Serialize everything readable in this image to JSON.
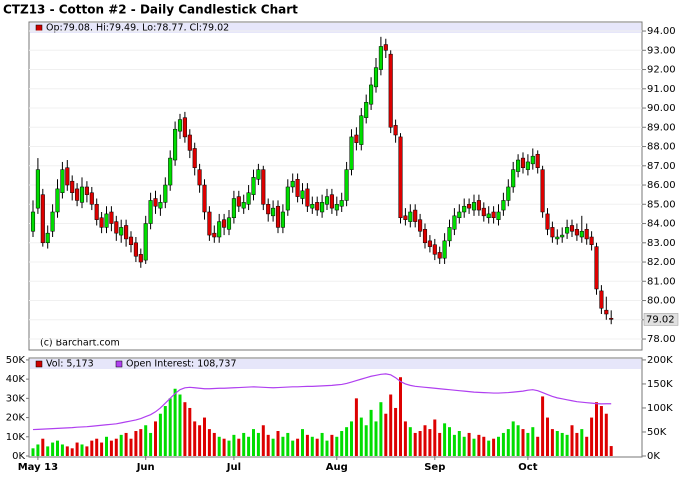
{
  "chart_data": [
    {
      "type": "candlestick",
      "title": "CTZ13 - Cotton #2 - Daily Candlestick Chart",
      "legend": "Op:79.08, Hi:79.49, Lo:78.77, Cl:79.02",
      "watermark": "(c) Barchart.com",
      "up_color": "#00dd00",
      "down_color": "#dd0000",
      "legend_color": "#cc0000",
      "grid": true,
      "ylim": [
        77.43,
        94.47
      ],
      "yticks": [
        {
          "value": 78,
          "label": "78.00"
        },
        {
          "value": 79,
          "label": "79.00"
        },
        {
          "value": 80,
          "label": "80.00"
        },
        {
          "value": 81,
          "label": "81.00"
        },
        {
          "value": 82,
          "label": "82.00"
        },
        {
          "value": 83,
          "label": "83.00"
        },
        {
          "value": 84,
          "label": "84.00"
        },
        {
          "value": 85,
          "label": "85.00"
        },
        {
          "value": 86,
          "label": "86.00"
        },
        {
          "value": 87,
          "label": "87.00"
        },
        {
          "value": 88,
          "label": "88.00"
        },
        {
          "value": 89,
          "label": "89.00"
        },
        {
          "value": 90,
          "label": "90.00"
        },
        {
          "value": 91,
          "label": "91.00"
        },
        {
          "value": 92,
          "label": "92.00"
        },
        {
          "value": 93,
          "label": "93.00"
        },
        {
          "value": 94,
          "label": "94.00"
        }
      ],
      "open": [
        83.6,
        84.8,
        85.5,
        83.0,
        83.6,
        84.6,
        85.6,
        86.9,
        86.2,
        85.8,
        85.1,
        85.9,
        85.6,
        85.0,
        84.3,
        83.8,
        84.6,
        84.1,
        83.4,
        83.9,
        83.3,
        83.0,
        82.4,
        82.1,
        84.0,
        85.3,
        84.8,
        85.1,
        86.0,
        87.3,
        88.8,
        89.5,
        88.6,
        87.9,
        86.8,
        86.0,
        84.6,
        83.5,
        83.3,
        84.2,
        83.7,
        84.3,
        85.4,
        84.8,
        85.0,
        85.5,
        86.3,
        86.8,
        85.0,
        84.4,
        84.9,
        83.8,
        84.7,
        85.9,
        86.3,
        85.3,
        85.8,
        84.8,
        85.1,
        84.6,
        85.0,
        85.5,
        84.7,
        84.9,
        85.2,
        86.8,
        88.6,
        88.1,
        89.5,
        90.2,
        91.1,
        92.0,
        93.3,
        92.8,
        89.1,
        88.5,
        84.4,
        84.1,
        84.7,
        84.2,
        83.7,
        83.1,
        82.9,
        82.5,
        82.2,
        83.1,
        83.7,
        84.3,
        84.6,
        85.0,
        84.7,
        85.2,
        84.8,
        84.3,
        84.6,
        84.2,
        84.7,
        85.2,
        85.9,
        86.7,
        87.4,
        86.8,
        87.1,
        87.6,
        86.8,
        84.5,
        83.8,
        83.2,
        83.3,
        83.5,
        83.9,
        83.7,
        83.3,
        83.7,
        83.3,
        82.8,
        80.5,
        79.5,
        79.08
      ],
      "high": [
        85.2,
        87.4,
        85.8,
        83.9,
        85.0,
        86.3,
        87.2,
        87.3,
        86.5,
        86.1,
        86.4,
        86.2,
        85.9,
        85.3,
        84.6,
        84.9,
        84.9,
        84.4,
        84.2,
        84.2,
        83.6,
        83.3,
        82.7,
        84.4,
        85.6,
        85.7,
        85.5,
        86.4,
        87.8,
        89.3,
        89.7,
        89.8,
        88.9,
        88.2,
        87.1,
        86.3,
        84.9,
        83.9,
        84.5,
        84.5,
        84.7,
        85.7,
        85.7,
        85.5,
        86.0,
        86.8,
        87.1,
        87.0,
        85.3,
        85.2,
        85.2,
        85.0,
        86.3,
        86.6,
        86.6,
        86.1,
        86.1,
        85.4,
        85.4,
        85.5,
        85.8,
        85.8,
        85.4,
        85.6,
        87.2,
        88.9,
        89.0,
        90.0,
        90.7,
        91.6,
        92.6,
        93.7,
        93.6,
        93.0,
        89.4,
        88.7,
        84.8,
        85.0,
        85.0,
        84.5,
        84.0,
        83.4,
        83.2,
        82.8,
        83.5,
        84.2,
        84.8,
        85.0,
        85.3,
        85.3,
        85.5,
        85.5,
        85.1,
        84.9,
        84.9,
        85.0,
        85.6,
        86.3,
        87.2,
        87.6,
        87.7,
        87.6,
        87.9,
        87.8,
        87.0,
        84.8,
        84.1,
        83.7,
        83.8,
        84.2,
        84.2,
        84.0,
        84.4,
        84.0,
        83.6,
        83.0,
        80.8,
        80.2,
        79.49
      ],
      "low": [
        83.3,
        84.5,
        82.8,
        82.7,
        83.3,
        84.3,
        85.3,
        85.7,
        85.2,
        84.9,
        84.8,
        85.1,
        84.7,
        83.9,
        83.5,
        83.5,
        83.6,
        83.1,
        83.0,
        82.8,
        82.5,
        82.0,
        81.7,
        81.9,
        83.7,
        84.5,
        84.4,
        84.8,
        85.7,
        87.0,
        88.4,
        88.2,
        87.4,
        86.5,
        85.6,
        84.2,
        83.1,
        83.0,
        83.0,
        83.4,
        83.4,
        84.0,
        84.6,
        84.5,
        84.7,
        85.2,
        86.0,
        84.7,
        84.1,
        84.1,
        83.5,
        83.5,
        84.4,
        85.6,
        85.1,
        85.0,
        84.6,
        84.5,
        84.4,
        84.3,
        84.7,
        84.5,
        84.4,
        84.6,
        84.9,
        86.5,
        87.8,
        87.8,
        89.2,
        89.9,
        90.8,
        91.7,
        92.6,
        88.7,
        88.2,
        84.0,
        83.9,
        83.8,
        83.8,
        83.3,
        82.7,
        82.5,
        82.1,
        81.9,
        81.9,
        82.8,
        83.4,
        84.0,
        84.3,
        84.5,
        84.4,
        84.4,
        84.1,
        84.0,
        84.0,
        83.9,
        84.4,
        84.9,
        85.6,
        86.4,
        86.6,
        86.5,
        86.8,
        86.6,
        84.3,
        83.4,
        83.0,
        82.9,
        83.0,
        83.2,
        83.3,
        83.1,
        83.0,
        82.9,
        82.6,
        80.3,
        79.3,
        79.0,
        78.77
      ],
      "close": [
        84.6,
        86.8,
        83.0,
        83.5,
        84.6,
        85.8,
        86.8,
        86.0,
        85.6,
        85.2,
        85.9,
        85.5,
        85.0,
        84.2,
        83.8,
        84.5,
        84.0,
        83.5,
        83.8,
        83.2,
        82.9,
        82.3,
        82.0,
        84.0,
        85.2,
        84.9,
        85.1,
        86.0,
        87.4,
        88.9,
        89.4,
        88.5,
        87.8,
        86.9,
        86.0,
        84.6,
        83.4,
        83.3,
        84.1,
        83.8,
        84.3,
        85.3,
        84.9,
        85.1,
        85.6,
        86.4,
        86.8,
        85.0,
        84.5,
        84.8,
        83.8,
        84.6,
        85.9,
        86.2,
        85.4,
        85.7,
        84.9,
        85.0,
        84.7,
        85.1,
        85.4,
        84.8,
        85.0,
        85.2,
        86.8,
        88.5,
        88.2,
        89.6,
        90.3,
        91.2,
        92.1,
        93.2,
        93.0,
        89.0,
        88.6,
        84.3,
        84.2,
        84.6,
        84.1,
        83.6,
        83.0,
        82.8,
        82.4,
        82.2,
        83.1,
        83.8,
        84.4,
        84.6,
        84.9,
        84.8,
        85.1,
        84.7,
        84.4,
        84.5,
        84.3,
        84.6,
        85.2,
        85.9,
        86.8,
        87.3,
        86.9,
        87.2,
        87.5,
        86.9,
        84.6,
        83.7,
        83.3,
        83.3,
        83.4,
        83.8,
        83.6,
        83.4,
        83.6,
        83.2,
        82.9,
        80.6,
        79.6,
        79.3,
        79.02
      ]
    },
    {
      "type": "bar",
      "categories": [
        null,
        "May 13",
        null,
        null,
        null,
        null,
        null,
        null,
        null,
        null,
        null,
        null,
        null,
        null,
        null,
        null,
        null,
        null,
        null,
        null,
        null,
        null,
        null,
        "Jun",
        null,
        null,
        null,
        null,
        null,
        null,
        null,
        null,
        null,
        null,
        null,
        null,
        null,
        null,
        null,
        null,
        null,
        "Jul",
        null,
        null,
        null,
        null,
        null,
        null,
        null,
        null,
        null,
        null,
        null,
        null,
        null,
        null,
        null,
        null,
        null,
        null,
        null,
        null,
        "Aug",
        null,
        null,
        null,
        null,
        null,
        null,
        null,
        null,
        null,
        null,
        null,
        null,
        null,
        null,
        null,
        null,
        null,
        null,
        null,
        "Sep",
        null,
        null,
        null,
        null,
        null,
        null,
        null,
        null,
        null,
        null,
        null,
        null,
        null,
        null,
        null,
        null,
        null,
        null,
        "Oct",
        null,
        null,
        null,
        null,
        null,
        null,
        null,
        null,
        null,
        null,
        null,
        null,
        null,
        null,
        null,
        null,
        null
      ],
      "ylim": [
        0,
        51000
      ],
      "yticks": [
        {
          "value": 0,
          "label": "0K"
        },
        {
          "value": 10000,
          "label": "10K"
        },
        {
          "value": 20000,
          "label": "20K"
        },
        {
          "value": 30000,
          "label": "30K"
        },
        {
          "value": 40000,
          "label": "40K"
        },
        {
          "value": 50000,
          "label": "50K"
        }
      ],
      "y2lim": [
        0,
        204000
      ],
      "y2ticks": [
        {
          "value": 0,
          "label": "0K"
        },
        {
          "value": 50000,
          "label": "50K"
        },
        {
          "value": 100000,
          "label": "100K"
        },
        {
          "value": 150000,
          "label": "150K"
        },
        {
          "value": 200000,
          "label": "200K"
        }
      ],
      "series": [
        {
          "name": "Vol: 5,173",
          "color": "#cc0000",
          "values": [
            4000,
            6000,
            9000,
            5000,
            7000,
            8000,
            6000,
            5000,
            4000,
            7000,
            6000,
            5000,
            8000,
            9000,
            7000,
            10000,
            8000,
            9000,
            11000,
            12000,
            9000,
            13000,
            14000,
            16000,
            12000,
            18000,
            22000,
            26000,
            30000,
            35000,
            32000,
            28000,
            25000,
            18000,
            16000,
            20000,
            14000,
            12000,
            10000,
            9000,
            8000,
            11000,
            9000,
            12000,
            10000,
            14000,
            12000,
            16000,
            11000,
            9000,
            13000,
            10000,
            12000,
            8000,
            9000,
            14000,
            11000,
            10000,
            9000,
            12000,
            8000,
            11000,
            10000,
            13000,
            15000,
            18000,
            30000,
            20000,
            16000,
            24000,
            18000,
            28000,
            22000,
            32000,
            25000,
            41000,
            18000,
            15000,
            12000,
            13000,
            16000,
            14000,
            19000,
            12000,
            17000,
            15000,
            11000,
            13000,
            10000,
            12000,
            9000,
            11000,
            10000,
            8000,
            9000,
            10000,
            12000,
            14000,
            18000,
            16000,
            14000,
            12000,
            15000,
            10000,
            31000,
            20000,
            14000,
            13000,
            12000,
            11000,
            16000,
            12000,
            14000,
            10000,
            20000,
            28000,
            26000,
            22000,
            5173
          ]
        },
        {
          "name": "Open Interest: 108,737",
          "color": "#b040f0",
          "type": "line",
          "axis": "y2",
          "values": [
            55000,
            55500,
            56000,
            56500,
            57000,
            57500,
            58000,
            58500,
            59000,
            60000,
            60500,
            61000,
            62000,
            63000,
            64000,
            65000,
            66000,
            67000,
            69000,
            71000,
            73000,
            75000,
            78000,
            82000,
            86000,
            92000,
            100000,
            110000,
            120000,
            130000,
            138000,
            142000,
            143000,
            142000,
            141000,
            140000,
            140000,
            140500,
            141000,
            141000,
            141500,
            142000,
            142500,
            143000,
            143500,
            144000,
            143500,
            143000,
            142500,
            142000,
            142500,
            143000,
            143500,
            144000,
            144000,
            144500,
            145000,
            145000,
            145500,
            146000,
            146500,
            147000,
            148000,
            149000,
            151000,
            154000,
            157000,
            160000,
            163000,
            166000,
            168000,
            170000,
            171000,
            169000,
            163000,
            155000,
            150000,
            147000,
            145000,
            144000,
            143000,
            142000,
            141000,
            140000,
            139000,
            138000,
            137000,
            136000,
            135000,
            134000,
            133000,
            132500,
            132000,
            131500,
            131000,
            131000,
            131500,
            132000,
            133000,
            134000,
            135000,
            137000,
            138000,
            136000,
            132000,
            128000,
            124000,
            121000,
            119000,
            117000,
            115000,
            113000,
            112000,
            111000,
            110000,
            109000,
            108500,
            108700,
            108737
          ]
        }
      ]
    }
  ]
}
